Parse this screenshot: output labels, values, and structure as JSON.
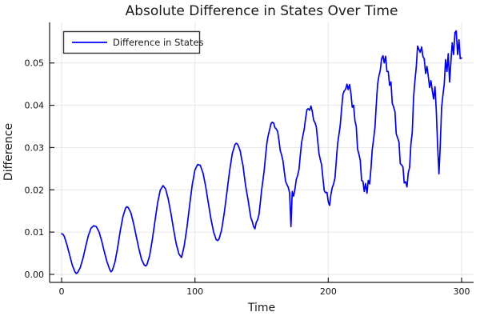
{
  "colors": {
    "line": "#0000ff",
    "grid": "#e6e6e6",
    "axis": "#1a1a1a",
    "background": "#ffffff",
    "legend_border": "#333333"
  },
  "chart_data": {
    "type": "line",
    "title": "Absolute Difference in States Over Time",
    "xlabel": "Time",
    "ylabel": "Difference",
    "xlim": [
      -9,
      309
    ],
    "ylim": [
      -0.0019,
      0.0596
    ],
    "grid": true,
    "legend": {
      "position": "top-left",
      "label": "Difference in States"
    },
    "x_ticks": {
      "values": [
        0,
        100,
        200,
        300
      ],
      "labels": [
        "0",
        "100",
        "200",
        "300"
      ]
    },
    "y_ticks": {
      "values": [
        0,
        0.01,
        0.02,
        0.03,
        0.04,
        0.05
      ],
      "labels": [
        "0.00",
        "0.01",
        "0.02",
        "0.03",
        "0.04",
        "0.05"
      ]
    },
    "series": [
      {
        "name": "Difference in States",
        "color": "#0000ff",
        "points": [
          [
            0,
            0.0096
          ],
          [
            1,
            0.0095
          ],
          [
            2,
            0.009
          ],
          [
            4,
            0.007
          ],
          [
            6,
            0.0046
          ],
          [
            8,
            0.0022
          ],
          [
            10,
            0.0006
          ],
          [
            11,
            0.0002
          ],
          [
            12,
            0.0004
          ],
          [
            14,
            0.0016
          ],
          [
            16,
            0.0038
          ],
          [
            18,
            0.0065
          ],
          [
            20,
            0.0091
          ],
          [
            22,
            0.0109
          ],
          [
            24,
            0.0115
          ],
          [
            26,
            0.0113
          ],
          [
            28,
            0.0101
          ],
          [
            30,
            0.008
          ],
          [
            32,
            0.0054
          ],
          [
            34,
            0.003
          ],
          [
            36,
            0.0012
          ],
          [
            37,
            0.0006
          ],
          [
            38,
            0.0009
          ],
          [
            40,
            0.0029
          ],
          [
            42,
            0.0063
          ],
          [
            44,
            0.0103
          ],
          [
            46,
            0.0137
          ],
          [
            48,
            0.0157
          ],
          [
            49,
            0.016
          ],
          [
            50,
            0.0158
          ],
          [
            52,
            0.0145
          ],
          [
            54,
            0.012
          ],
          [
            56,
            0.009
          ],
          [
            58,
            0.006
          ],
          [
            60,
            0.0035
          ],
          [
            62,
            0.0022
          ],
          [
            63,
            0.002
          ],
          [
            64,
            0.0023
          ],
          [
            66,
            0.0044
          ],
          [
            68,
            0.0081
          ],
          [
            70,
            0.0126
          ],
          [
            72,
            0.0169
          ],
          [
            74,
            0.0199
          ],
          [
            76,
            0.021
          ],
          [
            78,
            0.0202
          ],
          [
            80,
            0.0178
          ],
          [
            82,
            0.0144
          ],
          [
            84,
            0.0106
          ],
          [
            86,
            0.0072
          ],
          [
            88,
            0.0048
          ],
          [
            90,
            0.004
          ],
          [
            92,
            0.0068
          ],
          [
            94,
            0.0111
          ],
          [
            96,
            0.0163
          ],
          [
            98,
            0.0212
          ],
          [
            100,
            0.0247
          ],
          [
            102,
            0.026
          ],
          [
            104,
            0.0258
          ],
          [
            106,
            0.024
          ],
          [
            108,
            0.0209
          ],
          [
            110,
            0.017
          ],
          [
            112,
            0.0131
          ],
          [
            114,
            0.01
          ],
          [
            116,
            0.0082
          ],
          [
            117,
            0.008
          ],
          [
            118,
            0.0083
          ],
          [
            120,
            0.0105
          ],
          [
            122,
            0.0145
          ],
          [
            124,
            0.0195
          ],
          [
            126,
            0.0245
          ],
          [
            128,
            0.0285
          ],
          [
            130,
            0.0307
          ],
          [
            131,
            0.031
          ],
          [
            132,
            0.0308
          ],
          [
            133,
            0.03
          ],
          [
            134,
            0.0292
          ],
          [
            135,
            0.0273
          ],
          [
            136,
            0.0258
          ],
          [
            137,
            0.0234
          ],
          [
            138,
            0.021
          ],
          [
            139,
            0.0191
          ],
          [
            140,
            0.0174
          ],
          [
            141,
            0.0152
          ],
          [
            142,
            0.0133
          ],
          [
            143,
            0.0125
          ],
          [
            144,
            0.0113
          ],
          [
            145,
            0.0108
          ],
          [
            146,
            0.0123
          ],
          [
            147,
            0.0129
          ],
          [
            148,
            0.0141
          ],
          [
            149,
            0.0168
          ],
          [
            150,
            0.0199
          ],
          [
            151,
            0.0223
          ],
          [
            152,
            0.0247
          ],
          [
            153,
            0.0281
          ],
          [
            154,
            0.0312
          ],
          [
            155,
            0.0329
          ],
          [
            156,
            0.0342
          ],
          [
            157,
            0.0356
          ],
          [
            158,
            0.036
          ],
          [
            159,
            0.0358
          ],
          [
            160,
            0.0347
          ],
          [
            161,
            0.0344
          ],
          [
            162,
            0.0338
          ],
          [
            163,
            0.0317
          ],
          [
            164,
            0.0293
          ],
          [
            165,
            0.0282
          ],
          [
            166,
            0.0269
          ],
          [
            167,
            0.0244
          ],
          [
            168,
            0.022
          ],
          [
            169,
            0.0212
          ],
          [
            170,
            0.0206
          ],
          [
            171,
            0.0193
          ],
          [
            172,
            0.0113
          ],
          [
            173,
            0.0196
          ],
          [
            174,
            0.0185
          ],
          [
            175,
            0.0202
          ],
          [
            176,
            0.0224
          ],
          [
            177,
            0.0234
          ],
          [
            178,
            0.0248
          ],
          [
            179,
            0.028
          ],
          [
            180,
            0.0312
          ],
          [
            181,
            0.0329
          ],
          [
            182,
            0.0344
          ],
          [
            183,
            0.0369
          ],
          [
            184,
            0.039
          ],
          [
            185,
            0.0392
          ],
          [
            186,
            0.0388
          ],
          [
            187,
            0.0398
          ],
          [
            188,
            0.0386
          ],
          [
            189,
            0.0365
          ],
          [
            190,
            0.0359
          ],
          [
            191,
            0.035
          ],
          [
            192,
            0.0319
          ],
          [
            193,
            0.0286
          ],
          [
            194,
            0.0272
          ],
          [
            195,
            0.0259
          ],
          [
            196,
            0.0227
          ],
          [
            197,
            0.0198
          ],
          [
            198,
            0.0193
          ],
          [
            199,
            0.0194
          ],
          [
            200,
            0.0172
          ],
          [
            201,
            0.0163
          ],
          [
            202,
            0.019
          ],
          [
            203,
            0.0205
          ],
          [
            204,
            0.0214
          ],
          [
            205,
            0.0228
          ],
          [
            206,
            0.0267
          ],
          [
            207,
            0.0309
          ],
          [
            208,
            0.0331
          ],
          [
            209,
            0.0353
          ],
          [
            210,
            0.0392
          ],
          [
            211,
            0.0426
          ],
          [
            212,
            0.0434
          ],
          [
            213,
            0.0438
          ],
          [
            214,
            0.045
          ],
          [
            215,
            0.0437
          ],
          [
            216,
            0.0449
          ],
          [
            217,
            0.0427
          ],
          [
            218,
            0.0395
          ],
          [
            219,
            0.04
          ],
          [
            220,
            0.0363
          ],
          [
            221,
            0.035
          ],
          [
            222,
            0.0296
          ],
          [
            223,
            0.0284
          ],
          [
            224,
            0.027
          ],
          [
            225,
            0.0222
          ],
          [
            226,
            0.022
          ],
          [
            227,
            0.0196
          ],
          [
            228,
            0.0215
          ],
          [
            229,
            0.0192
          ],
          [
            230,
            0.0222
          ],
          [
            231,
            0.0214
          ],
          [
            232,
            0.025
          ],
          [
            233,
            0.0295
          ],
          [
            234,
            0.032
          ],
          [
            235,
            0.0348
          ],
          [
            236,
            0.04
          ],
          [
            237,
            0.045
          ],
          [
            238,
            0.047
          ],
          [
            239,
            0.0482
          ],
          [
            240,
            0.051
          ],
          [
            241,
            0.0517
          ],
          [
            242,
            0.05
          ],
          [
            243,
            0.0516
          ],
          [
            244,
            0.048
          ],
          [
            245,
            0.048
          ],
          [
            246,
            0.0447
          ],
          [
            247,
            0.0455
          ],
          [
            248,
            0.0405
          ],
          [
            249,
            0.0396
          ],
          [
            250,
            0.0385
          ],
          [
            251,
            0.0332
          ],
          [
            252,
            0.0323
          ],
          [
            253,
            0.0313
          ],
          [
            254,
            0.0262
          ],
          [
            255,
            0.0259
          ],
          [
            256,
            0.0254
          ],
          [
            257,
            0.0216
          ],
          [
            258,
            0.0219
          ],
          [
            259,
            0.0207
          ],
          [
            260,
            0.024
          ],
          [
            261,
            0.0253
          ],
          [
            262,
            0.031
          ],
          [
            263,
            0.0335
          ],
          [
            264,
            0.042
          ],
          [
            265,
            0.0459
          ],
          [
            266,
            0.049
          ],
          [
            267,
            0.054
          ],
          [
            268,
            0.0532
          ],
          [
            269,
            0.0525
          ],
          [
            270,
            0.0538
          ],
          [
            271,
            0.0515
          ],
          [
            272,
            0.051
          ],
          [
            273,
            0.0475
          ],
          [
            274,
            0.0492
          ],
          [
            275,
            0.047
          ],
          [
            276,
            0.0442
          ],
          [
            277,
            0.0458
          ],
          [
            278,
            0.0435
          ],
          [
            279,
            0.0415
          ],
          [
            280,
            0.0444
          ],
          [
            281,
            0.039
          ],
          [
            282,
            0.0305
          ],
          [
            283,
            0.0238
          ],
          [
            284,
            0.0305
          ],
          [
            285,
            0.0395
          ],
          [
            286,
            0.0425
          ],
          [
            287,
            0.045
          ],
          [
            288,
            0.0508
          ],
          [
            289,
            0.048
          ],
          [
            290,
            0.0522
          ],
          [
            291,
            0.0455
          ],
          [
            292,
            0.0505
          ],
          [
            293,
            0.0548
          ],
          [
            294,
            0.052
          ],
          [
            295,
            0.0572
          ],
          [
            296,
            0.0576
          ],
          [
            297,
            0.052
          ],
          [
            298,
            0.0555
          ],
          [
            299,
            0.051
          ],
          [
            300,
            0.0512
          ]
        ]
      }
    ]
  }
}
